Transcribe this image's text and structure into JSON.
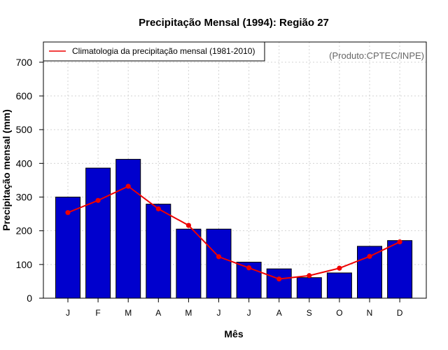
{
  "chart_data": {
    "type": "bar",
    "title": "Precipitação Mensal (1994): Região 27",
    "xlabel": "Mês",
    "ylabel": "Precipitação mensal (mm)",
    "source_note": "(Produto:CPTEC/INPE)",
    "categories": [
      "J",
      "F",
      "M",
      "A",
      "M",
      "J",
      "J",
      "A",
      "S",
      "O",
      "N",
      "D"
    ],
    "yticks": [
      0,
      100,
      200,
      300,
      400,
      500,
      600,
      700
    ],
    "ylim": [
      0,
      760
    ],
    "grid": true,
    "legend_position": "top-left",
    "series": [
      {
        "name": "Precipitação mensal (1994)",
        "kind": "bar",
        "color": "#0000CD",
        "values": [
          300,
          386,
          412,
          279,
          205,
          205,
          107,
          87,
          61,
          75,
          154,
          171
        ]
      },
      {
        "name": "Climatologia da precipitação mensal (1981-2010)",
        "kind": "line",
        "color": "#EE0000",
        "values": [
          254,
          290,
          332,
          265,
          216,
          123,
          90,
          57,
          67,
          89,
          124,
          167
        ]
      }
    ]
  }
}
